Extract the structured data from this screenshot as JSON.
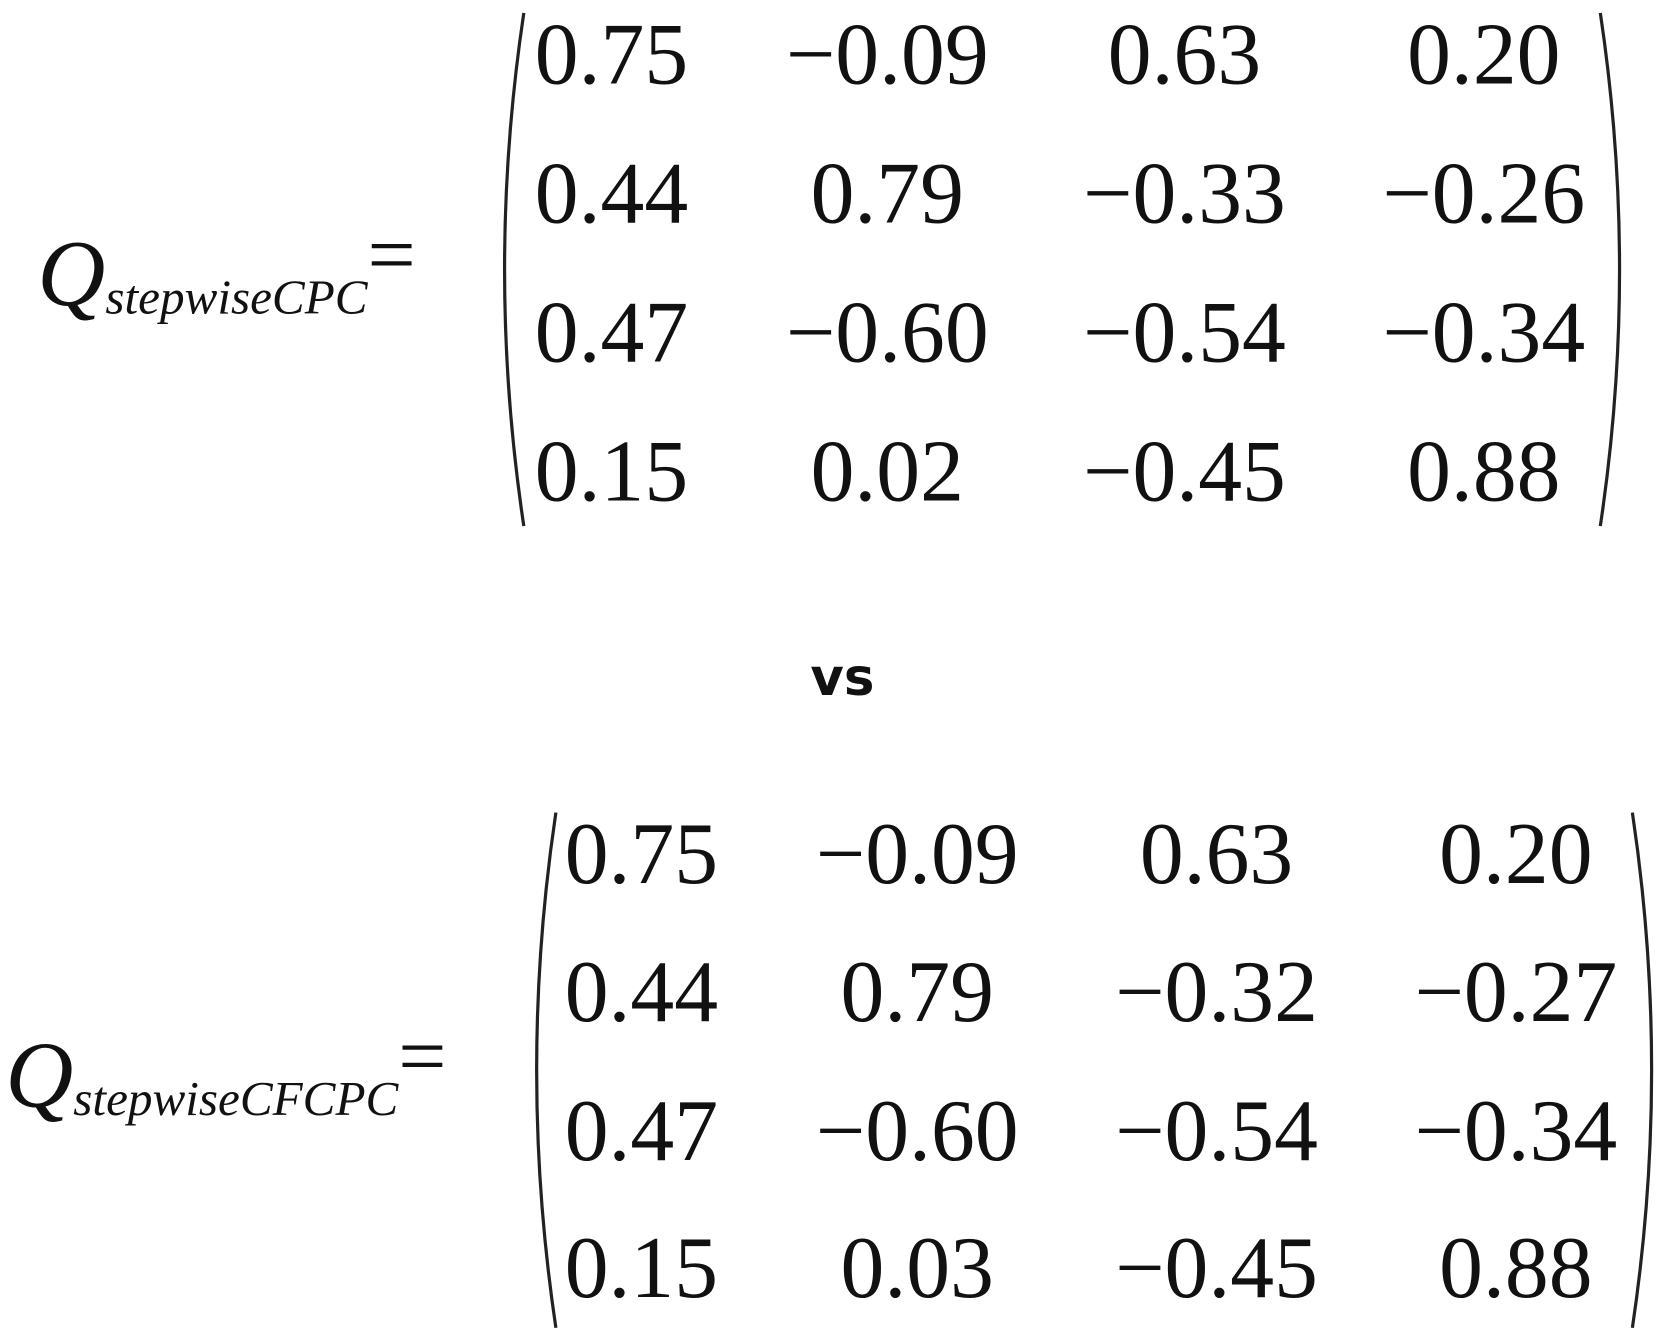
{
  "equations": [
    {
      "symbol": "Q",
      "subscript": "stepwiseCPC",
      "relation": "=",
      "rows": [
        [
          "0.75",
          "−0.09",
          "0.63",
          "0.20"
        ],
        [
          "0.44",
          "0.79",
          "−0.33",
          "−0.26"
        ],
        [
          "0.47",
          "−0.60",
          "−0.54",
          "−0.34"
        ],
        [
          "0.15",
          "0.02",
          "−0.45",
          "0.88"
        ]
      ]
    },
    {
      "symbol": "Q",
      "subscript": "stepwiseCFCPC",
      "relation": "=",
      "rows": [
        [
          "0.75",
          "−0.09",
          "0.63",
          "0.20"
        ],
        [
          "0.44",
          "0.79",
          "−0.32",
          "−0.27"
        ],
        [
          "0.47",
          "−0.60",
          "−0.54",
          "−0.34"
        ],
        [
          "0.15",
          "0.03",
          "−0.45",
          "0.88"
        ]
      ]
    }
  ],
  "separator": "vs"
}
